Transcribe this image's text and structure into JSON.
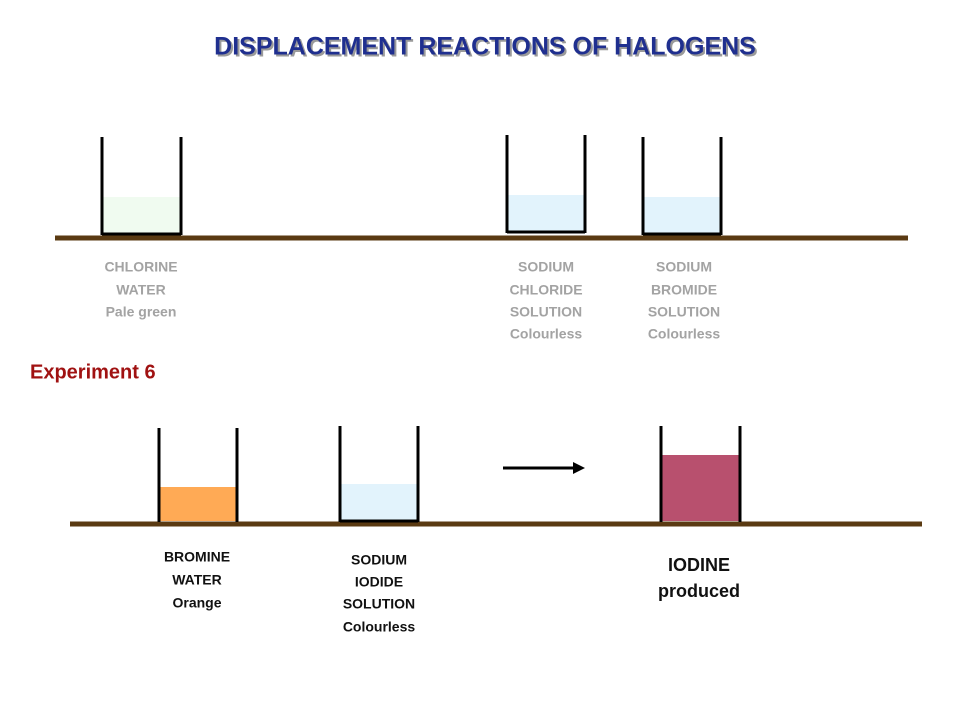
{
  "title": "DISPLACEMENT REACTIONS OF HALOGENS",
  "top_row": {
    "beakers": [
      {
        "label": [
          "CHLORINE",
          "WATER",
          "Pale green"
        ]
      },
      {
        "label": [
          "SODIUM",
          "CHLORIDE",
          "SOLUTION",
          "Colourless"
        ]
      },
      {
        "label": [
          "SODIUM",
          "BROMIDE",
          "SOLUTION",
          "Colourless"
        ]
      }
    ]
  },
  "experiment": "Experiment 6",
  "bottom_row": {
    "beakers": [
      {
        "label": [
          "BROMINE",
          "WATER",
          "Orange"
        ]
      },
      {
        "label": [
          "SODIUM",
          "IODIDE",
          "SOLUTION",
          "Colourless"
        ]
      }
    ],
    "result": {
      "label": [
        "IODINE",
        "produced"
      ]
    }
  }
}
